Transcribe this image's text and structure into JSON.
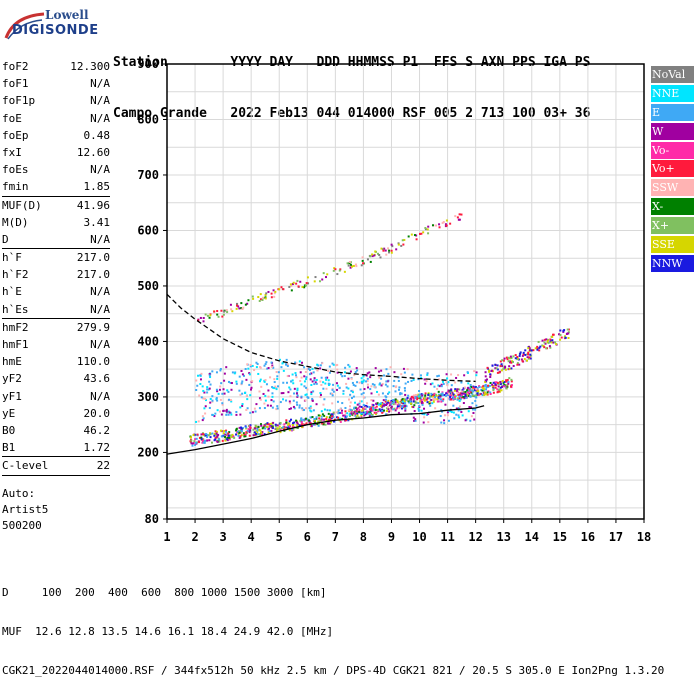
{
  "logo": {
    "brand_top": "Lowell",
    "brand_main": "DIGISONDE"
  },
  "header": {
    "line1": "Station        YYYY DAY   DDD HHMMSS P1  FFS S AXN PPS IGA PS",
    "line2": "Campo Grande   2022 Feb13 044 014000 RSF 005 2 713 100 03+ 36"
  },
  "params": {
    "group1": [
      {
        "name": "foF2",
        "value": "12.300"
      },
      {
        "name": "foF1",
        "value": "N/A"
      },
      {
        "name": "foF1p",
        "value": "N/A"
      },
      {
        "name": "foE",
        "value": "N/A"
      },
      {
        "name": "foEp",
        "value": "0.48"
      },
      {
        "name": "fxI",
        "value": "12.60"
      },
      {
        "name": "foEs",
        "value": "N/A"
      },
      {
        "name": "fmin",
        "value": "1.85"
      }
    ],
    "group2": [
      {
        "name": "MUF(D)",
        "value": "41.96"
      },
      {
        "name": "M(D)",
        "value": "3.41"
      },
      {
        "name": "D",
        "value": "N/A"
      }
    ],
    "group3": [
      {
        "name": "h`F",
        "value": "217.0"
      },
      {
        "name": "h`F2",
        "value": "217.0"
      },
      {
        "name": "h`E",
        "value": "N/A"
      },
      {
        "name": "h`Es",
        "value": "N/A"
      }
    ],
    "group4": [
      {
        "name": "hmF2",
        "value": "279.9"
      },
      {
        "name": "hmF1",
        "value": "N/A"
      },
      {
        "name": "hmE",
        "value": "110.0"
      },
      {
        "name": "yF2",
        "value": "43.6"
      },
      {
        "name": "yF1",
        "value": "N/A"
      },
      {
        "name": "yE",
        "value": "20.0"
      },
      {
        "name": "B0",
        "value": "46.2"
      },
      {
        "name": "B1",
        "value": "1.72"
      }
    ],
    "group5": [
      {
        "name": "C-level",
        "value": "22"
      }
    ],
    "autoscaling": {
      "line1": "Auto:",
      "line2": "Artist5",
      "line3": "500200"
    }
  },
  "legend": [
    {
      "label": "NoVal",
      "color": "#808080"
    },
    {
      "label": "NNE",
      "color": "#00e5ff"
    },
    {
      "label": "E",
      "color": "#3fa9f5"
    },
    {
      "label": "W",
      "color": "#a000a0"
    },
    {
      "label": "Vo-",
      "color": "#ff2aa8"
    },
    {
      "label": "Vo+",
      "color": "#ff1a3c"
    },
    {
      "label": "SSW",
      "color": "#ffb3b3"
    },
    {
      "label": "X-",
      "color": "#008000"
    },
    {
      "label": "X+",
      "color": "#80c060"
    },
    {
      "label": "SSE",
      "color": "#d6d600"
    },
    {
      "label": "NNW",
      "color": "#1a1ae0"
    }
  ],
  "chart_data": {
    "type": "scatter",
    "title": "",
    "xlabel": "",
    "ylabel": "",
    "xlim": [
      1,
      18
    ],
    "ylim": [
      80,
      900
    ],
    "x_ticks": [
      1,
      2,
      3,
      4,
      5,
      6,
      7,
      8,
      9,
      10,
      11,
      12,
      13,
      14,
      15,
      16,
      17,
      18
    ],
    "x_tick_labels": [
      "1",
      "2",
      "3",
      "4",
      "5",
      "6",
      "7",
      "8",
      "9",
      "10",
      "11",
      "12",
      "13",
      "14",
      "15",
      "16",
      "17",
      "18"
    ],
    "y_ticks": [
      80,
      200,
      300,
      400,
      500,
      600,
      700,
      800,
      900
    ],
    "y_tick_labels": [
      "80",
      "200",
      "300",
      "400",
      "500",
      "600",
      "700",
      "800",
      "900"
    ],
    "grid": true,
    "traces": [
      {
        "name": "O-trace",
        "points": [
          [
            1.8,
            222
          ],
          [
            2,
            225
          ],
          [
            3,
            232
          ],
          [
            4,
            242
          ],
          [
            5,
            248
          ],
          [
            6,
            256
          ],
          [
            7,
            265
          ],
          [
            8,
            276
          ],
          [
            9,
            287
          ],
          [
            10,
            297
          ],
          [
            11,
            305
          ],
          [
            12,
            312
          ],
          [
            12.8,
            320
          ],
          [
            13.3,
            330
          ]
        ]
      },
      {
        "name": "Spread",
        "points": [
          [
            2,
            300
          ],
          [
            3,
            310
          ],
          [
            4,
            318
          ],
          [
            5,
            325
          ],
          [
            6,
            320
          ],
          [
            7,
            318
          ],
          [
            8,
            310
          ],
          [
            9,
            315
          ],
          [
            10,
            300
          ],
          [
            11,
            298
          ],
          [
            12,
            305
          ]
        ]
      },
      {
        "name": "X-trace",
        "points": [
          [
            12.3,
            340
          ],
          [
            12.8,
            355
          ],
          [
            13.5,
            370
          ],
          [
            14.2,
            390
          ],
          [
            14.8,
            405
          ],
          [
            15.3,
            418
          ]
        ]
      },
      {
        "name": "Second hop",
        "points": [
          [
            2,
            440
          ],
          [
            3,
            455
          ],
          [
            4,
            475
          ],
          [
            5,
            492
          ],
          [
            6,
            510
          ],
          [
            7,
            528
          ],
          [
            8,
            548
          ],
          [
            9,
            570
          ],
          [
            10,
            595
          ],
          [
            11,
            618
          ],
          [
            11.5,
            630
          ]
        ]
      }
    ],
    "curves": [
      {
        "name": "profile",
        "style": "solid",
        "points": [
          [
            1,
            197
          ],
          [
            2,
            205
          ],
          [
            3,
            215
          ],
          [
            4,
            225
          ],
          [
            5,
            238
          ],
          [
            6,
            250
          ],
          [
            7,
            258
          ],
          [
            8,
            262
          ],
          [
            9,
            268
          ],
          [
            10,
            270
          ],
          [
            11,
            276
          ],
          [
            12,
            280
          ],
          [
            12.3,
            284
          ]
        ]
      },
      {
        "name": "model",
        "style": "dashed",
        "points": [
          [
            1,
            485
          ],
          [
            1.5,
            460
          ],
          [
            2,
            440
          ],
          [
            3,
            405
          ],
          [
            4,
            380
          ],
          [
            5,
            365
          ],
          [
            6,
            355
          ],
          [
            7,
            345
          ],
          [
            8,
            340
          ],
          [
            9,
            337
          ],
          [
            10,
            333
          ],
          [
            11,
            330
          ],
          [
            12,
            328
          ]
        ]
      }
    ]
  },
  "footer": {
    "dist_label": "D",
    "dist_values": "100  200  400  600  800 1000 1500 3000 [km]",
    "muf_label": "MUF",
    "muf_values": "12.6 12.8 13.5 14.6 16.1 18.4 24.9 42.0 [MHz]",
    "info": "CGK21_2022044014000.RSF / 344fx512h 50 kHz 2.5 km / DPS-4D CGK21 821 / 20.5 S 305.0 E Ion2Png 1.3.20"
  }
}
